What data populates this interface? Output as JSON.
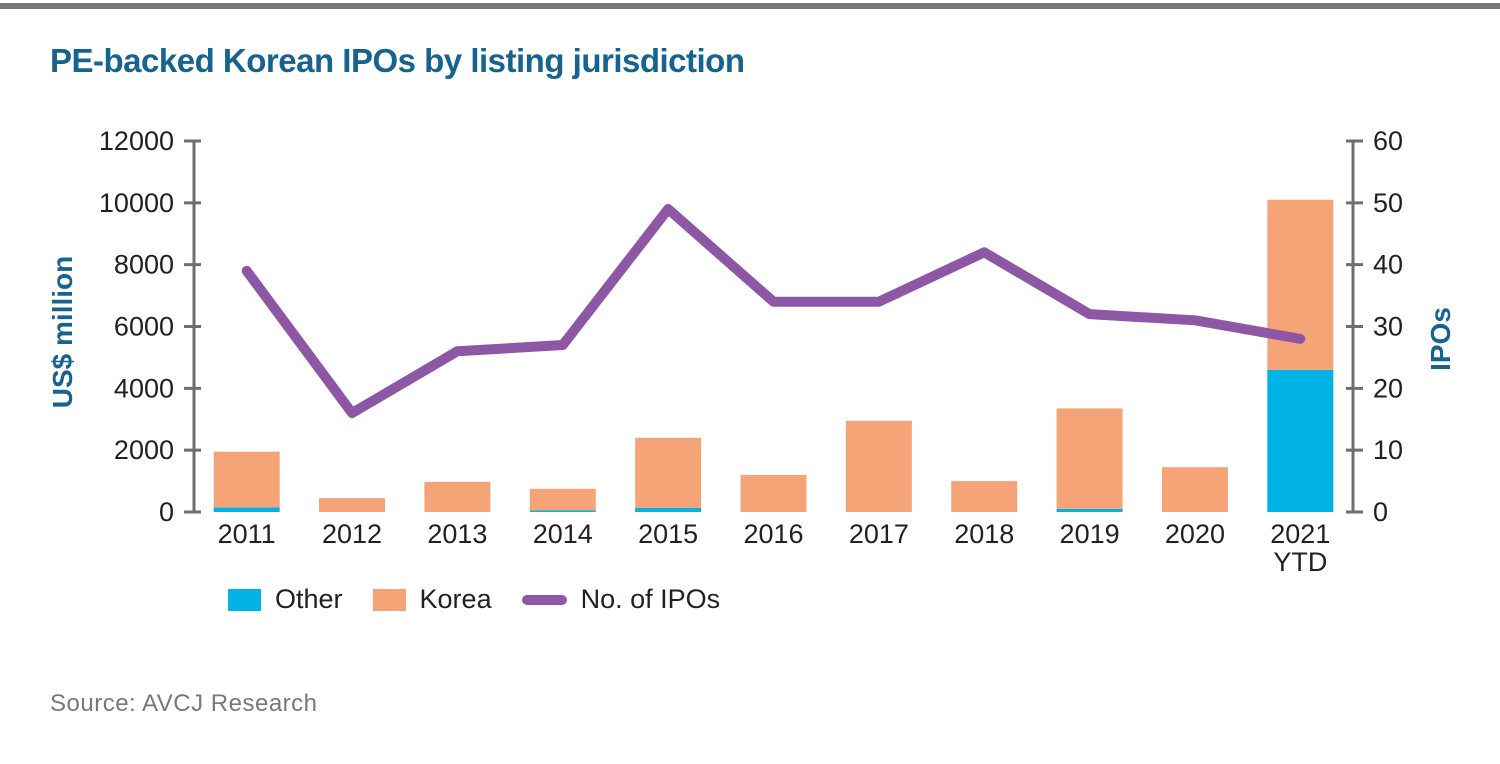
{
  "page": {
    "title": "PE-backed Korean IPOs by listing jurisdiction",
    "source": "Source: AVCJ Research"
  },
  "colors": {
    "title_text": "#16638f",
    "axis_line": "#6d6e71",
    "tick_text": "#231f20",
    "top_rule": "#77787a",
    "source_text": "#77787b",
    "other_cyan": "#00b2e6",
    "korea_orange": "#f5a478",
    "ipos_purple": "#8e57a5"
  },
  "chart_data": {
    "type": "bar",
    "subtype": "stacked-bars-with-line",
    "title": "PE-backed Korean IPOs by listing jurisdiction",
    "categories": [
      "2011",
      "2012",
      "2013",
      "2014",
      "2015",
      "2016",
      "2017",
      "2018",
      "2019",
      "2020",
      "2021\nYTD"
    ],
    "series": [
      {
        "name": "Other",
        "type": "bar",
        "axis": "left",
        "color": "#00b2e6",
        "values": [
          150,
          0,
          0,
          50,
          130,
          0,
          0,
          0,
          100,
          0,
          4600
        ]
      },
      {
        "name": "Korea",
        "type": "bar",
        "axis": "left",
        "color": "#f5a478",
        "values": [
          1800,
          450,
          975,
          700,
          2270,
          1200,
          2950,
          1000,
          3250,
          1450,
          5500
        ]
      },
      {
        "name": "No. of IPOs",
        "type": "line",
        "axis": "right",
        "color": "#8e57a5",
        "values": [
          39,
          16,
          26,
          27,
          49,
          34,
          34,
          42,
          32,
          31,
          28
        ]
      }
    ],
    "left_axis": {
      "label": "US$ million",
      "min": 0,
      "max": 12000,
      "step": 2000
    },
    "right_axis": {
      "label": "IPOs",
      "min": 0,
      "max": 60,
      "step": 10
    },
    "legend": [
      {
        "label": "Other",
        "marker": "swatch",
        "color": "#00b2e6"
      },
      {
        "label": "Korea",
        "marker": "swatch",
        "color": "#f5a478"
      },
      {
        "label": "No. of IPOs",
        "marker": "line",
        "color": "#8e57a5"
      }
    ],
    "grid": false,
    "legend_position": "bottom-left"
  }
}
